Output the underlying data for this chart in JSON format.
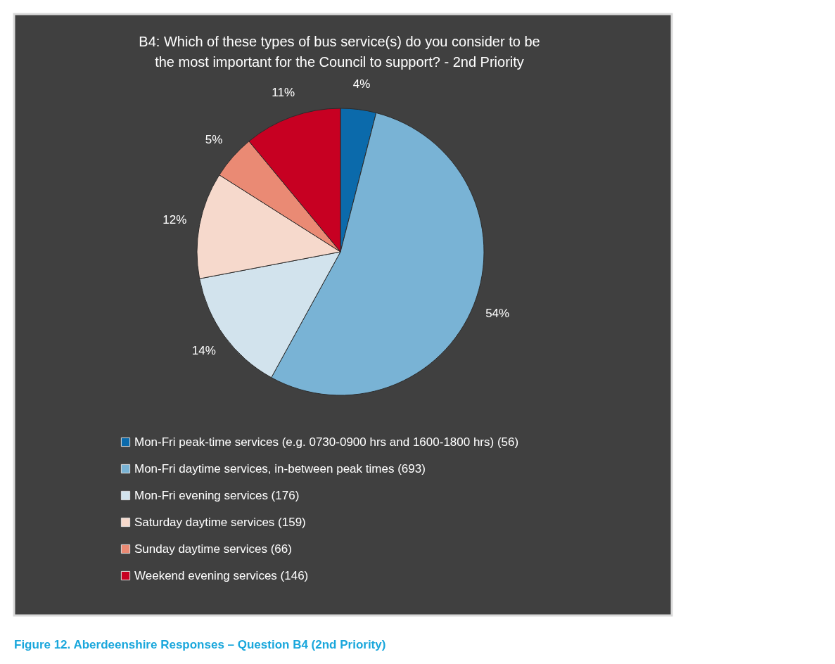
{
  "chart_data": {
    "type": "pie",
    "title": "B4: Which of these types of bus service(s) do you consider to be the most important for the Council to support? - 2nd Priority",
    "categories": [
      "Mon-Fri peak-time services (e.g. 0730-0900 hrs and 1600-1800 hrs) (56)",
      "Mon-Fri daytime services, in-between peak times (693)",
      "Mon-Fri evening services (176)",
      "Saturday daytime services (159)",
      "Sunday daytime services (66)",
      "Weekend evening services  (146)"
    ],
    "values": [
      4,
      54,
      14,
      12,
      5,
      11
    ],
    "colors": [
      "#0b6aab",
      "#79b3d5",
      "#d2e3ed",
      "#f6d9cc",
      "#ea8a74",
      "#c70022"
    ],
    "value_labels": [
      "4%",
      "54%",
      "14%",
      "12%",
      "5%",
      "11%"
    ],
    "legend": "bottom",
    "annotations": [
      "Figure 12.  Aberdeenshire Responses – Question B4 (2nd Priority)"
    ]
  }
}
